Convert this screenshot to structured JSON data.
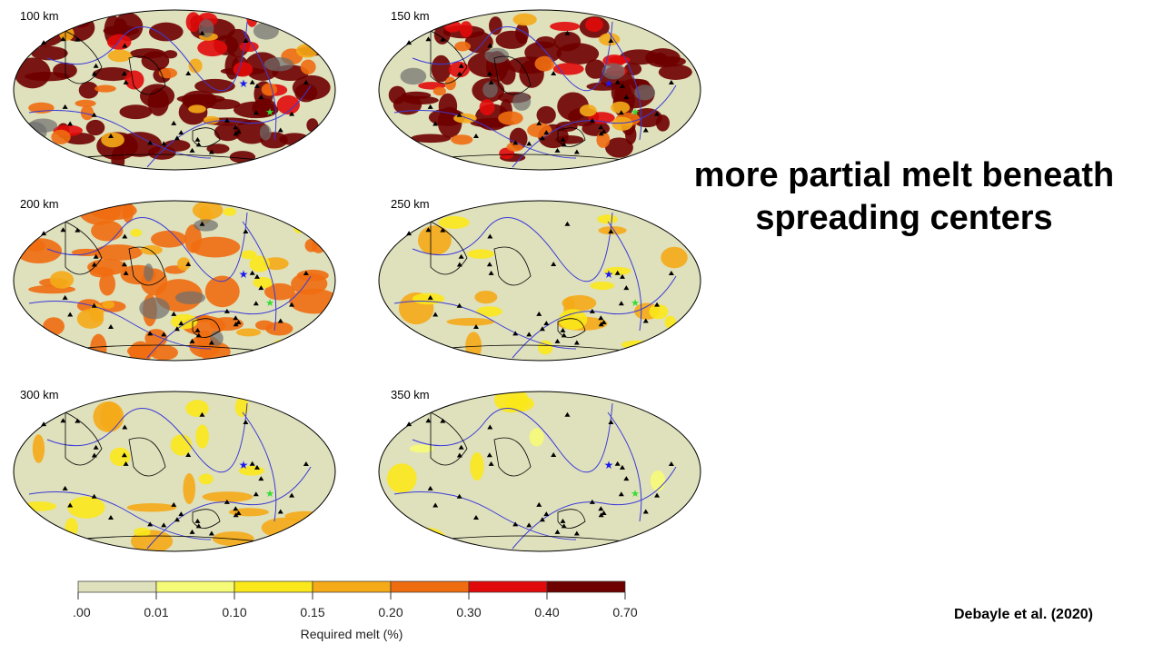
{
  "maps": [
    {
      "label": "100 km",
      "melt_level": "high"
    },
    {
      "label": "150 km",
      "melt_level": "high"
    },
    {
      "label": "200 km",
      "melt_level": "medium"
    },
    {
      "label": "250 km",
      "melt_level": "low"
    },
    {
      "label": "300 km",
      "melt_level": "low"
    },
    {
      "label": "350 km",
      "melt_level": "very-low"
    }
  ],
  "headline": {
    "line1": "more partial melt beneath",
    "line2": "spreading centers"
  },
  "citation": "Debayle et al. (2020)",
  "colorbar": {
    "title": "Required melt (%)",
    "ticks": [
      "0.00",
      "0.01",
      "0.10",
      "0.15",
      "0.20",
      "0.30",
      "0.40",
      "0.70"
    ],
    "colors": [
      "#dfe0bc",
      "#f6fb77",
      "#fbe81a",
      "#f5aa17",
      "#ef6d10",
      "#e10a0a",
      "#6e0000"
    ]
  },
  "colors": {
    "plate_boundaries": "#3a3ad8",
    "blue_star": "#1a1af0",
    "green_star": "#33dd33",
    "fast_region": "#6e6e6e"
  }
}
